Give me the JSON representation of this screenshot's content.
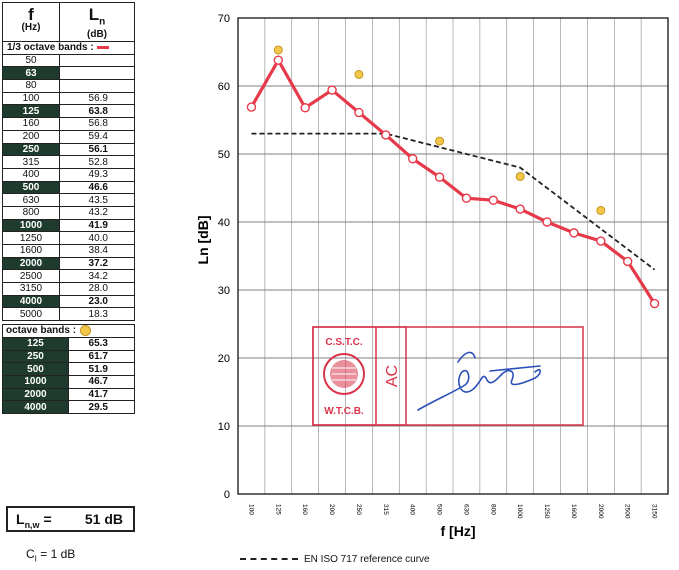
{
  "table": {
    "col_f_symbol": "f",
    "col_ln_symbol": "L",
    "col_ln_sub": "n",
    "col_f_unit": "(Hz)",
    "col_ln_unit": "(dB)",
    "third_octave_label": "1/3 octave bands :",
    "octave_label": "octave bands :",
    "third_octave_rows": [
      {
        "f": "50",
        "v": "",
        "dark": false
      },
      {
        "f": "63",
        "v": "",
        "dark": true
      },
      {
        "f": "80",
        "v": "",
        "dark": false
      },
      {
        "f": "100",
        "v": "56.9",
        "dark": false
      },
      {
        "f": "125",
        "v": "63.8",
        "dark": true
      },
      {
        "f": "160",
        "v": "56.8",
        "dark": false
      },
      {
        "f": "200",
        "v": "59.4",
        "dark": false
      },
      {
        "f": "250",
        "v": "56.1",
        "dark": true
      },
      {
        "f": "315",
        "v": "52.8",
        "dark": false
      },
      {
        "f": "400",
        "v": "49.3",
        "dark": false
      },
      {
        "f": "500",
        "v": "46.6",
        "dark": true
      },
      {
        "f": "630",
        "v": "43.5",
        "dark": false
      },
      {
        "f": "800",
        "v": "43.2",
        "dark": false
      },
      {
        "f": "1000",
        "v": "41.9",
        "dark": true
      },
      {
        "f": "1250",
        "v": "40.0",
        "dark": false
      },
      {
        "f": "1600",
        "v": "38.4",
        "dark": false
      },
      {
        "f": "2000",
        "v": "37.2",
        "dark": true
      },
      {
        "f": "2500",
        "v": "34.2",
        "dark": false
      },
      {
        "f": "3150",
        "v": "28.0",
        "dark": false
      },
      {
        "f": "4000",
        "v": "23.0",
        "dark": true
      },
      {
        "f": "5000",
        "v": "18.3",
        "dark": false
      }
    ],
    "octave_rows": [
      {
        "f": "125",
        "v": "65.3"
      },
      {
        "f": "250",
        "v": "61.7"
      },
      {
        "f": "500",
        "v": "51.9"
      },
      {
        "f": "1000",
        "v": "46.7"
      },
      {
        "f": "2000",
        "v": "41.7"
      },
      {
        "f": "4000",
        "v": "29.5"
      }
    ]
  },
  "lnw": {
    "label_main": "L",
    "label_sub": "n,w",
    "label_eq": " =",
    "value": "51 dB"
  },
  "ci": {
    "main": "C",
    "sub": "I",
    "rest": " = 1 dB"
  },
  "reference_legend": "EN ISO 717 reference curve",
  "stamp": {
    "top_text": "C.S.T.C.",
    "bottom_text": "W.T.C.B.",
    "side_text": "AC"
  },
  "colors": {
    "third_octave_line": "#e63a4a",
    "octave_marker": "#f2c84b",
    "reference_line": "#222222",
    "table_dark": "#1f3b2e",
    "stamp": "#d9334a",
    "signature": "#2b4fb8"
  },
  "chart_data": {
    "type": "line",
    "xlabel": "f [Hz]",
    "ylabel": "Ln [dB]",
    "ylim": [
      0,
      70
    ],
    "yticks": [
      0,
      10,
      20,
      30,
      40,
      50,
      60,
      70
    ],
    "categories": [
      "100",
      "125",
      "160",
      "200",
      "250",
      "315",
      "400",
      "500",
      "630",
      "800",
      "1000",
      "1250",
      "1600",
      "2000",
      "2500",
      "3150"
    ],
    "grid": true,
    "series": [
      {
        "name": "1/3 octave bands :",
        "kind": "line_markers",
        "values": [
          56.9,
          63.8,
          56.8,
          59.4,
          56.1,
          52.8,
          49.3,
          46.6,
          43.5,
          43.2,
          41.9,
          40.0,
          38.4,
          37.2,
          34.2,
          28.0
        ]
      },
      {
        "name": "octave bands :",
        "kind": "points",
        "points": [
          {
            "x": "125",
            "y": 65.3
          },
          {
            "x": "250",
            "y": 61.7
          },
          {
            "x": "500",
            "y": 51.9
          },
          {
            "x": "1000",
            "y": 46.7
          },
          {
            "x": "2000",
            "y": 41.7
          }
        ]
      },
      {
        "name": "EN ISO 717 reference curve",
        "kind": "dashed",
        "points": [
          {
            "x": "100",
            "y": 53
          },
          {
            "x": "315",
            "y": 53
          },
          {
            "x": "1000",
            "y": 48
          },
          {
            "x": "3150",
            "y": 33
          }
        ]
      }
    ]
  }
}
